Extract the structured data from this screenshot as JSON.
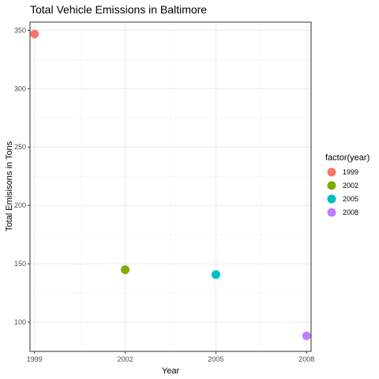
{
  "chart_data": {
    "type": "scatter",
    "title": "Total Vehicle Emissions in Baltimore",
    "xlabel": "Year",
    "ylabel": "Total Emisisons in Tons",
    "xlim": [
      1998.85,
      2008.15
    ],
    "ylim": [
      75,
      357
    ],
    "x_ticks": [
      1999,
      2002,
      2005,
      2008
    ],
    "y_ticks": [
      100,
      150,
      200,
      250,
      300,
      350
    ],
    "grid": true,
    "legend_position": "right",
    "legend_title": "factor(year)",
    "points": [
      {
        "x": 1999,
        "y": 346.8,
        "group": "1999",
        "color": "#F8766D"
      },
      {
        "x": 2002,
        "y": 144.9,
        "group": "2002",
        "color": "#7CAE00"
      },
      {
        "x": 2005,
        "y": 140.8,
        "group": "2005",
        "color": "#00BFC4"
      },
      {
        "x": 2008,
        "y": 88.3,
        "group": "2008",
        "color": "#C77CFF"
      }
    ]
  }
}
